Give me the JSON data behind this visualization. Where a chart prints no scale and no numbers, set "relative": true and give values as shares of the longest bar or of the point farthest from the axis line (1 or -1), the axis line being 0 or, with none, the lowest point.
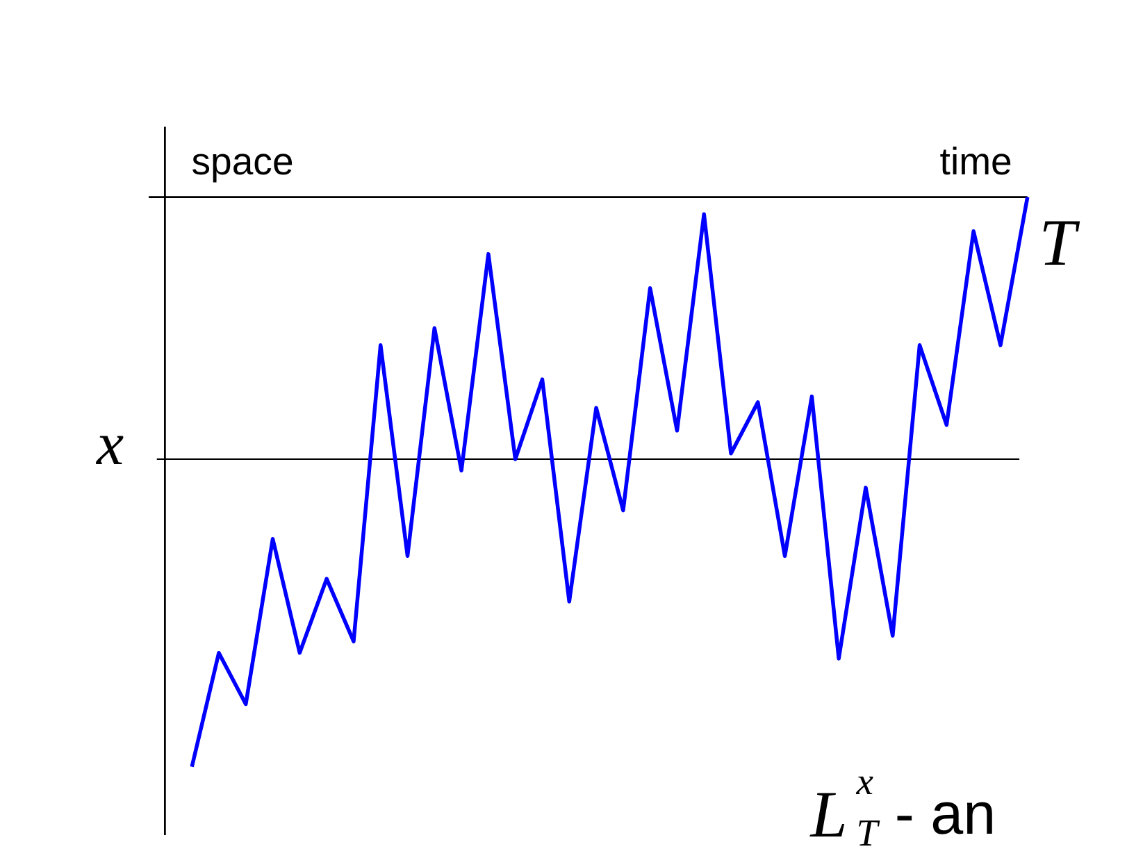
{
  "chart_data": {
    "type": "line",
    "relative": true,
    "xlabel": "time",
    "ylabel": "space",
    "categories": [
      null,
      null,
      null,
      null,
      null,
      null,
      null,
      null,
      null,
      null,
      null,
      null,
      null,
      null,
      null,
      null,
      null,
      null,
      null,
      null,
      null,
      null,
      null,
      null,
      null,
      null,
      null,
      null,
      null,
      null,
      null,
      null
    ],
    "series": [
      {
        "color": "#0000ff",
        "values": [
          -1,
          -0.8,
          -0.89,
          -0.6,
          -0.8,
          -0.67,
          -0.78,
          -0.26,
          -0.63,
          -0.23,
          -0.48,
          -0.1,
          -0.46,
          -0.32,
          -0.71,
          -0.37,
          -0.55,
          -0.16,
          -0.41,
          -0.03,
          -0.45,
          -0.36,
          -0.63,
          -0.35,
          -0.81,
          -0.51,
          -0.77,
          -0.26,
          -0.4,
          -0.06,
          -0.26,
          0
        ]
      }
    ],
    "ref_lines": [
      {
        "axis": "y",
        "value": -0.46,
        "label": "x"
      }
    ],
    "annotations": [
      "T",
      "L$^{x}$$_{T}$ - an"
    ],
    "marker": "none",
    "line_style": "solid"
  }
}
